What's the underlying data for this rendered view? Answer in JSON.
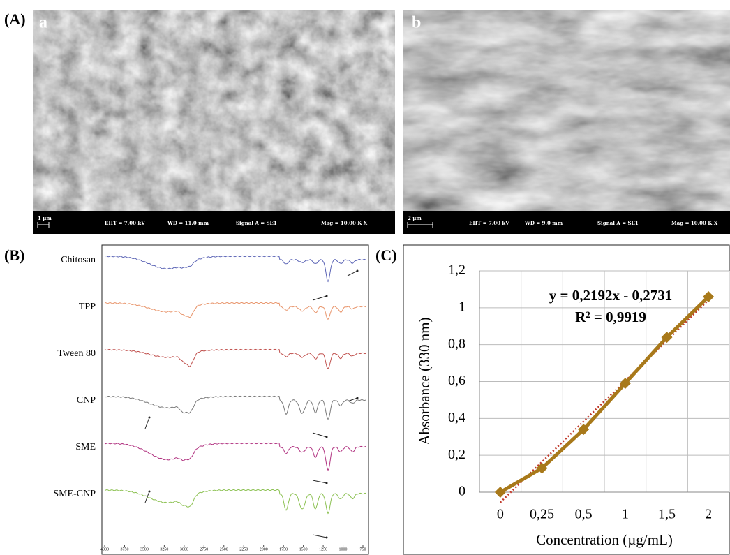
{
  "panel_a": {
    "label": "(A)",
    "images": [
      {
        "label": "a",
        "scale": "1 µm",
        "eht": "EHT = 7.00 kV",
        "wd": "WD = 11.0 mm",
        "signal": "Signal A = SE1",
        "mag": "Mag = 10.00 K X"
      },
      {
        "label": "b",
        "scale": "2 µm",
        "eht": "EHT = 7.00 kV",
        "wd": "WD = 9.0 mm",
        "signal": "Signal A = SE1",
        "mag": "Mag = 10.00 K X"
      }
    ]
  },
  "panel_b": {
    "label": "(B)",
    "spectra": [
      "Chitosan",
      "TPP",
      "Tween 80",
      "CNP",
      "SME",
      "SME-CNP"
    ],
    "colors": [
      "#5a63b5",
      "#e8946a",
      "#c0504d",
      "#7a7a7a",
      "#b0307f",
      "#8cc152"
    ],
    "xticks": [
      4000,
      3750,
      3500,
      3250,
      3000,
      2750,
      2500,
      2250,
      2000,
      1750,
      1500,
      1250,
      1000,
      750
    ]
  },
  "chart_data": {
    "type": "line",
    "panel_label": "(C)",
    "x_label": "Concentration (µg/mL)",
    "y_label": "Absorbance (330 nm)",
    "annotations": [
      "y = 0,2192x - 0,2731",
      "R² = 0,9919"
    ],
    "categories": [
      "0",
      "0,25",
      "0,5",
      "1",
      "1,5",
      "2"
    ],
    "values": [
      0,
      0.13,
      0.34,
      0.59,
      0.84,
      1.06
    ],
    "color": "#a8791a",
    "trendline_color": "#c0392b",
    "grid": true,
    "ylim": [
      0,
      1.2
    ],
    "yticks": [
      0,
      {
        "value": 0.2,
        "label": "0,2"
      },
      {
        "value": 0.4,
        "label": "0,4"
      },
      {
        "value": 0.6,
        "label": "0,6"
      },
      {
        "value": 0.8,
        "label": "0,8"
      },
      1,
      {
        "value": 1.2,
        "label": "1,2"
      }
    ]
  }
}
